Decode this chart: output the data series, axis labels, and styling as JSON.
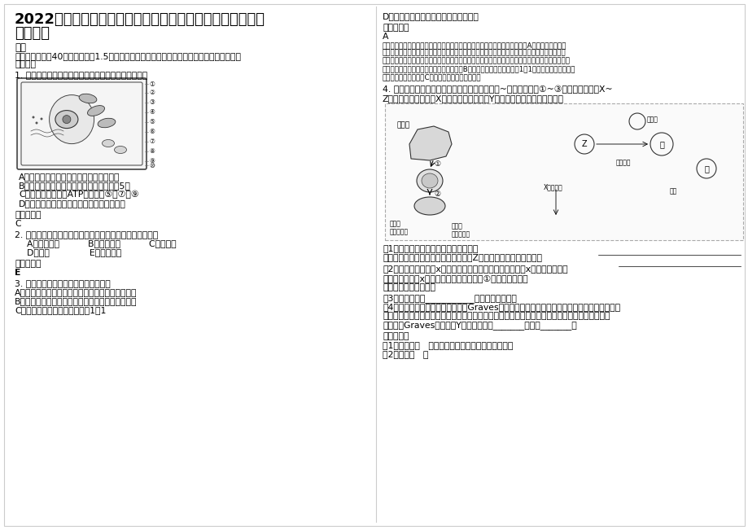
{
  "bg_color": "#ffffff",
  "title_line1": "2022年浙江省金华市武义岭下汤中学高三生物上学期期末试",
  "title_line2": "卷含解析",
  "title_fontsize": 13,
  "body_fontsize": 8.5,
  "small_fontsize": 7.8,
  "section1_header": "一、",
  "section1_intro_line1": "选择题（本题共40小题，每小题1.5分，在每小题给出的四个选项中，只有一项是符合题目要",
  "section1_intro_line2": "求的。）",
  "q1_text": "1. 右图为某种生物细胞结构模式图，下列分析正确的是",
  "q1_options": [
    "A、该图为光学显微镜下所观察到的结构图",
    "B、参与组成该生物的遗传物质的碱基共有5种",
    "C、该细胞中能产生ATP的部位是⑤、⑦和⑨",
    "D、该细胞可能取自茎尖分生区或根尖成熟区"
  ],
  "answer_label": "参考答案：",
  "q1_answer": "C",
  "q2_text": "2. 温室效应主要是由于大气中下列哪种气体含量增加所致。",
  "q2_options_line1": "A、二氧化氮          B、二氧化硫          C、氟利昂",
  "q2_options_line2": "D、氮气              E、二氧化碳",
  "q2_answer": "E",
  "q3_text": "3. 下列关于种群特征的叙述，正确的是",
  "q3_options": [
    "A、动物性成熟的早晚对动物出生率大小有重要影响",
    "B、各国人口只要保持替补出生率，就会保持零增长",
    "C、各种生物的种群性比率均为1：1"
  ],
  "q3_optionD": "D、种群密度是种群内个体特征的统计值",
  "q3_answer_label": "参考答案：",
  "q3_answer": "A",
  "q3_explanation": [
    "动物性成熟的早晚对动物出生率大小有重要影响，性成熟延迟则出生率降低，A正确；教材中指出",
    "稳定型预示着只要保持替补出生率（一个家庭生两个孩子）人口就会保持零增长，但保持替补出生",
    "率不一定人口就会零增长，如需考虑到一代人所生孩子成长为做父母之前将有部分死亡的可能，而这",
    "种可能又随着社会经济条件的变化而变化，B错误；一般种群的性比率为1：1，还有雌性大于雄性的",
    "，或雄性大于雌性的，C错误；种群密度是种群内数"
  ],
  "q4_intro_line1": "4. 下图是人体生命活动部分调节示意图，其中甲~内表示细胞，①~③表示相关过程，X~",
  "q4_intro_line2": "Z表示相关激素，激素X是一种糖蛋白，激素Y是一种含磷的氨基酸衍生物。",
  "q4_q1_line1": "（1）、当细胞外液渗透压升高时，刺激",
  "q4_q1_line2": "中的渗透压感受器产生兴奋，导致激素Z分泌增加，该激素的作用是",
  "q4_q2_line1": "（2）、如果用含激素x的饲料饲喂正常动物，则该动物腺素x的分泌量变化是",
  "q4_q2_line2": "。如果用含激素x的饲料饲喂正常动物，则①过程的生理反应",
  "q4_q2_line3": "（有或无）明显变化。",
  "q4_q3_line1": "（3）、甲细胞是___________；图中淋巴因子的",
  "q4_q4_line1": "（4）、毒株激惹性甲脱腺肿，又称Graves氏病，是由于机体产生针对某甲状腺激素受体的抗体",
  "q4_q4_line2": "，而该抗体能发挥与促甲状腺激素相同的生理作用，但甲状腺激素不会影响该抗体的分泌，与正常",
  "q4_q4_line3": "人相比，Graves氏病患者Y激素的分泌量_______，体温_______。",
  "q4_answer_label": "参考答案：",
  "q4_a1": "（1）、下丘脑   促进肾小管和集合管对水分的重吸收",
  "q4_a2": "（2）、减少   无",
  "page_width": 9.2,
  "page_height": 6.51
}
